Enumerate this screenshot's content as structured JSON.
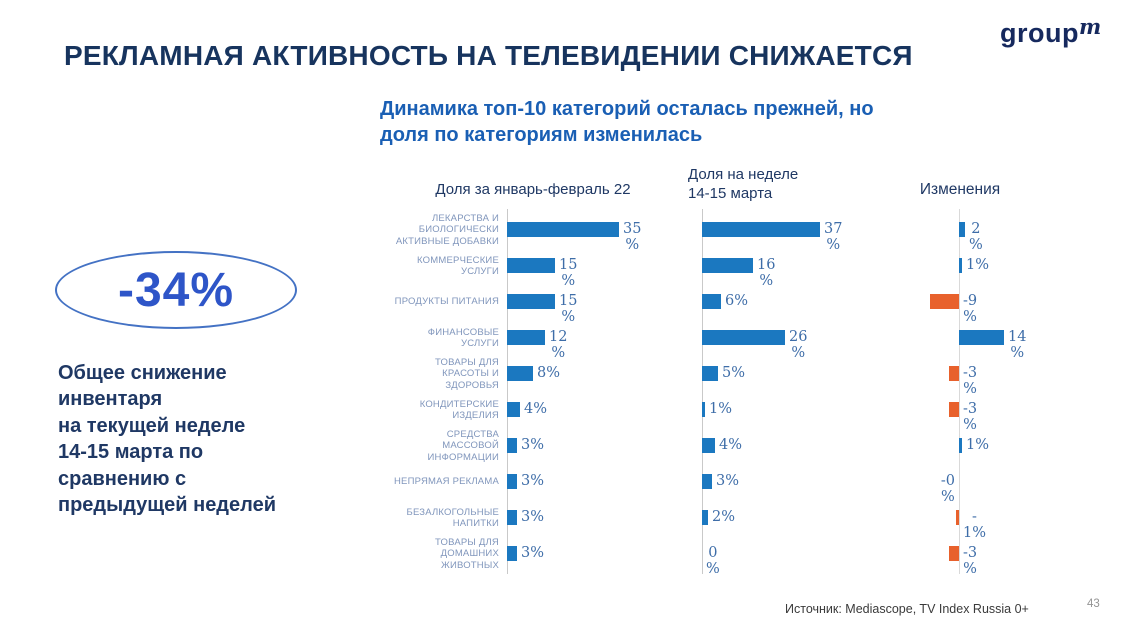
{
  "slide": {
    "title": "РЕКЛАМНАЯ АКТИВНОСТЬ НА ТЕЛЕВИДЕНИИ СНИЖАЕТСЯ",
    "subtitle": "Динамика топ-10 категорий осталась прежней, но\nдоля по категориям изменилась",
    "badge_value": "-34%",
    "note": "Общее снижение\nинвентаря\nна текущей неделе\n14-15 марта по\nсравнению с\nпредыдущей неделей",
    "source": "Источник: Mediascope, TV Index Russia 0+",
    "page_number": "43",
    "logo": {
      "text": "group",
      "sup": "m"
    }
  },
  "chart_data": {
    "type": "bar",
    "orientation": "horizontal",
    "unit": "%",
    "categories": [
      "ЛЕКАРСТВА И\nБИОЛОГИЧЕСКИ\nАКТИВНЫЕ ДОБАВКИ",
      "КОММЕРЧЕСКИЕ\nУСЛУГИ",
      "ПРОДУКТЫ ПИТАНИЯ",
      "ФИНАНСОВЫЕ\nУСЛУГИ",
      "ТОВАРЫ ДЛЯ\nКРАСОТЫ И\nЗДОРОВЬЯ",
      "КОНДИТЕРСКИЕ\nИЗДЕЛИЯ",
      "СРЕДСТВА\nМАССОВОЙ\nИНФОРМАЦИИ",
      "НЕПРЯМАЯ РЕКЛАМА",
      "БЕЗАЛКОГОЛЬНЫЕ\nНАПИТКИ",
      "ТОВАРЫ ДЛЯ\nДОМАШНИХ\nЖИВОТНЫХ"
    ],
    "series": [
      {
        "name": "Доля за январь-февраль 22",
        "values": [
          35,
          15,
          15,
          12,
          8,
          4,
          3,
          3,
          3,
          3
        ],
        "value_labels": [
          "35\n%",
          "15\n%",
          "15\n%",
          "12\n%",
          "8%",
          "4%",
          "3%",
          "3%",
          "3%",
          "3%"
        ]
      },
      {
        "name": "Доля на неделе\n14-15 марта",
        "values": [
          37,
          16,
          6,
          26,
          5,
          1,
          4,
          3,
          2,
          0
        ],
        "value_labels": [
          "37\n%",
          "16\n%",
          "6%",
          "26\n%",
          "5%",
          "1%",
          "4%",
          "3%",
          "2%",
          "0\n%"
        ]
      },
      {
        "name": "Изменения",
        "values": [
          2,
          1,
          -9,
          14,
          -3,
          -3,
          1,
          0,
          -1,
          -3
        ],
        "value_labels": [
          "2\n%",
          "1%",
          "-9\n%",
          "14\n%",
          "-3\n%",
          "-3\n%",
          "1%",
          "-0\n%",
          "-\n1%",
          "-3\n%"
        ]
      }
    ],
    "colors": {
      "bar_blue": "#1B78C0",
      "bar_orange": "#E8612C",
      "value_label_blue": "#3E6DA8",
      "category_label_blue": "#8096BC"
    }
  }
}
